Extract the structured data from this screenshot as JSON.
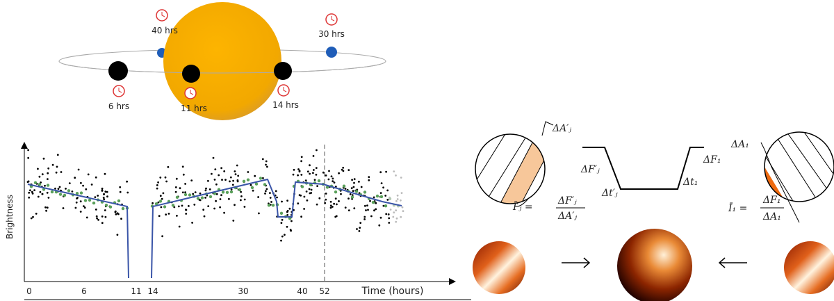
{
  "orbit": {
    "labels": [
      "40 hrs",
      "30 hrs",
      "6 hrs",
      "11 hrs",
      "14 hrs"
    ]
  },
  "light_curve": {
    "x_axis_label": "Time (hours)",
    "y_axis_label": "Brightness",
    "tick_labels": [
      "0",
      "6",
      "11",
      "14",
      "30",
      "40",
      "52"
    ]
  },
  "eclipse_map": {
    "area_left": "ΔA′ⱼ",
    "flux_left": "ΔF′ⱼ",
    "time_left": "Δt′ⱼ",
    "flux_right": "ΔF₁",
    "time_right": "Δt₁",
    "area_right": "ΔA₁",
    "intensity_left": "Ī′ⱼ =",
    "intensity_left_num": "ΔF′ⱼ",
    "intensity_left_den": "ΔA′ⱼ",
    "intensity_right": "Ī₁ =",
    "intensity_right_num": "ΔF₁",
    "intensity_right_den": "ΔA₁"
  }
}
